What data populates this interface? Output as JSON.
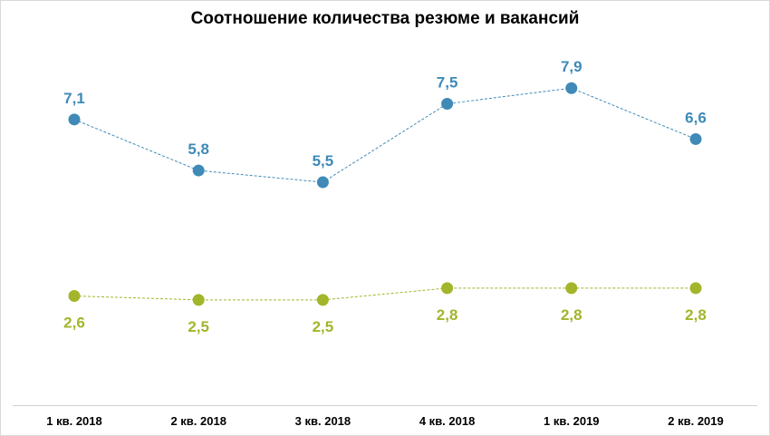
{
  "chart_data": {
    "type": "line",
    "title": "Соотношение количества резюме и вакансий",
    "xlabel": "",
    "ylabel": "",
    "categories": [
      "1 кв. 2018",
      "2 кв. 2018",
      "3 кв. 2018",
      "4 кв. 2018",
      "1 кв. 2019",
      "2 кв. 2019"
    ],
    "ylim": [
      0,
      9.5
    ],
    "grid": false,
    "legend": "none",
    "series": [
      {
        "values": [
          7.1,
          5.8,
          5.5,
          7.5,
          7.9,
          6.6
        ],
        "labels": [
          "7,1",
          "5,8",
          "5,5",
          "7,5",
          "7,9",
          "6,6"
        ],
        "color": "#3f8ab7",
        "label_position": "above"
      },
      {
        "values": [
          2.6,
          2.5,
          2.5,
          2.8,
          2.8,
          2.8
        ],
        "labels": [
          "2,6",
          "2,5",
          "2,5",
          "2,8",
          "2,8",
          "2,8"
        ],
        "color": "#a3b52a",
        "label_position": "below"
      }
    ]
  }
}
